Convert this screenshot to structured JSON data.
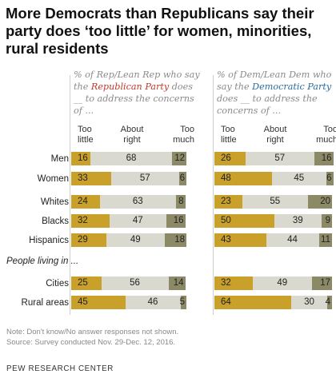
{
  "title": "More Democrats than Republicans say their party does ‘too little’ for women, minorities, rural residents",
  "chart_data": {
    "type": "bar",
    "stacked": true,
    "categories": [
      "Men",
      "Women",
      "Whites",
      "Blacks",
      "Hispanics",
      "Cities",
      "Rural areas"
    ],
    "section_label": "People living in ...",
    "column_headers": [
      "Too little",
      "About right",
      "Too much"
    ],
    "colors": {
      "too_little": "#c9a02a",
      "about_right": "#dad9cf",
      "too_much": "#8c8a66"
    },
    "panels": [
      {
        "intro_pre": "% of Rep/Lean Rep who say the ",
        "party": "Republican Party",
        "intro_post": " does __ to address the concerns of ...",
        "series": [
          {
            "name": "Too little",
            "values": [
              16,
              33,
              24,
              32,
              29,
              25,
              45
            ]
          },
          {
            "name": "About right",
            "values": [
              68,
              57,
              63,
              47,
              49,
              56,
              46
            ]
          },
          {
            "name": "Too much",
            "values": [
              12,
              6,
              8,
              16,
              18,
              14,
              5
            ]
          }
        ]
      },
      {
        "intro_pre": "% of Dem/Lean Dem who say the ",
        "party": "Democratic Party",
        "intro_post": " does __ to address the concerns of ...",
        "series": [
          {
            "name": "Too little",
            "values": [
              26,
              48,
              23,
              50,
              43,
              32,
              64
            ]
          },
          {
            "name": "About right",
            "values": [
              57,
              45,
              55,
              39,
              44,
              49,
              30
            ]
          },
          {
            "name": "Too much",
            "values": [
              16,
              6,
              20,
              9,
              11,
              17,
              4
            ]
          }
        ]
      }
    ]
  },
  "note": "Note: Don't know/No answer responses not shown.",
  "source": "Source: Survey conducted Nov. 29-Dec. 12, 2016.",
  "org": "PEW RESEARCH CENTER"
}
